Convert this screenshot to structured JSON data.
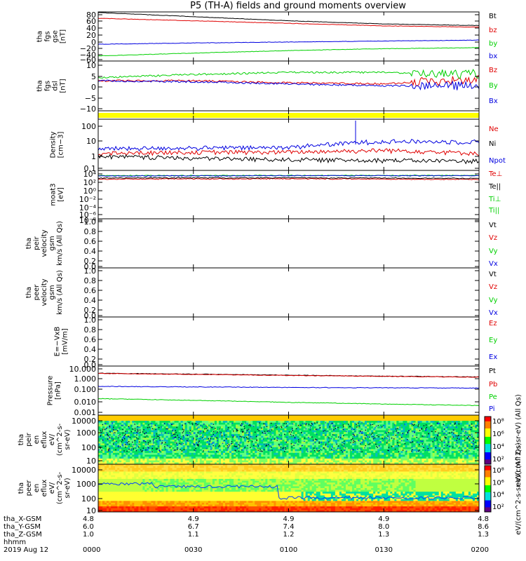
{
  "title": "P5 (TH-A) fields and ground moments overview",
  "colors": {
    "black": "#000000",
    "red": "#e00000",
    "green": "#00d000",
    "blue": "#0000e0",
    "yellow": "#ffff00"
  },
  "panels": [
    {
      "id": "fgs-gse",
      "ylabel": [
        "tha",
        "fgs",
        "gse",
        "[nT]"
      ],
      "yticks": [
        "80",
        "60",
        "40",
        "20",
        "0",
        "−20",
        "−40",
        "−60"
      ],
      "legend": [
        {
          "text": "Bt",
          "color": "black"
        },
        {
          "text": "bz",
          "color": "red"
        },
        {
          "text": "by",
          "color": "green"
        },
        {
          "text": "bx",
          "color": "blue"
        }
      ]
    },
    {
      "id": "fgs-dsl",
      "ylabel": [
        "tha",
        "fgs",
        "dsl",
        "[nT]"
      ],
      "yticks": [
        "10",
        "5",
        "0",
        "−5",
        "−10"
      ],
      "legend": [
        {
          "text": "Bz",
          "color": "red"
        },
        {
          "text": "By",
          "color": "green"
        },
        {
          "text": "Bx",
          "color": "blue"
        }
      ]
    },
    {
      "id": "mode-bar",
      "ylabel": [],
      "yticks": [],
      "legend": []
    },
    {
      "id": "density",
      "ylabel": [
        "Density",
        "[cm−3]"
      ],
      "yticks": [
        "100",
        "10",
        "1",
        "0.1"
      ],
      "legend": [
        {
          "text": "Ne",
          "color": "red"
        },
        {
          "text": "Ni",
          "color": "black"
        },
        {
          "text": "Npot",
          "color": "blue"
        }
      ]
    },
    {
      "id": "temperature",
      "ylabel": [
        "moat3",
        "[eV]"
      ],
      "yticks": [
        "10⁴",
        "10²",
        "10⁰",
        "10⁻²",
        "10⁻⁴",
        "10⁻⁶",
        "10⁻⁸"
      ],
      "legend": [
        {
          "text": "Te⊥",
          "color": "red"
        },
        {
          "text": "Te||",
          "color": "black"
        },
        {
          "text": "Ti⊥",
          "color": "green"
        },
        {
          "text": "Ti||",
          "color": "green"
        }
      ]
    },
    {
      "id": "peir-velocity",
      "ylabel": [
        "tha",
        "peir",
        "velocity",
        "gsm",
        "km/s (All Qs)"
      ],
      "yticks": [
        "1.0",
        "0.8",
        "0.6",
        "0.4",
        "0.2",
        "0.0"
      ],
      "legend": [
        {
          "text": "Vt",
          "color": "black"
        },
        {
          "text": "Vz",
          "color": "red"
        },
        {
          "text": "Vy",
          "color": "green"
        },
        {
          "text": "Vx",
          "color": "blue"
        }
      ]
    },
    {
      "id": "peer-velocity",
      "ylabel": [
        "tha",
        "peer",
        "velocity",
        "gsm",
        "km/s (All Qs)"
      ],
      "yticks": [
        "1.0",
        "0.8",
        "0.6",
        "0.4",
        "0.2",
        "0.0"
      ],
      "legend": [
        {
          "text": "Vt",
          "color": "black"
        },
        {
          "text": "Vz",
          "color": "red"
        },
        {
          "text": "Vy",
          "color": "green"
        },
        {
          "text": "Vx",
          "color": "blue"
        }
      ]
    },
    {
      "id": "efield",
      "ylabel": [
        "E=−VxB",
        "[mV/m]"
      ],
      "yticks": [
        "1.0",
        "0.8",
        "0.6",
        "0.4",
        "0.2",
        "0.0"
      ],
      "legend": [
        {
          "text": "Ez",
          "color": "red"
        },
        {
          "text": "Ey",
          "color": "green"
        },
        {
          "text": "Ex",
          "color": "blue"
        }
      ]
    },
    {
      "id": "pressure",
      "ylabel": [
        "Pressure",
        "[nPa]"
      ],
      "yticks": [
        "10.000",
        "1.000",
        "0.100",
        "0.010",
        "0.001"
      ],
      "legend": [
        {
          "text": "Pt",
          "color": "black"
        },
        {
          "text": "Pb",
          "color": "red"
        },
        {
          "text": "Pe",
          "color": "green"
        },
        {
          "text": "Pi",
          "color": "blue"
        }
      ]
    },
    {
      "id": "peir-eflux",
      "ylabel": [
        "tha",
        "peir",
        "en",
        "eflux",
        "eV/",
        "(cm^2-s-",
        "sr-eV)"
      ],
      "yticks": [
        "10000",
        "1000",
        "100",
        "10"
      ],
      "legend": []
    },
    {
      "id": "peer-eflux",
      "ylabel": [
        "tha",
        "peer",
        "en",
        "eflux",
        "eV/",
        "(cm^2-s-",
        "sr-eV)"
      ],
      "yticks": [
        "10000",
        "1000",
        "100",
        "10"
      ],
      "legend": []
    }
  ],
  "colorbars": [
    {
      "ticks": [
        "10⁸",
        "10⁶",
        "10⁴",
        "10²"
      ],
      "label": "eV/(cm^2-s-sr-eV) (All Qs)"
    },
    {
      "ticks": [
        "10⁸",
        "10⁶",
        "10⁴",
        "10²"
      ],
      "label": "eV/(cm^2-s-sr-eV) (All Qs)"
    }
  ],
  "x_axis": {
    "row_labels": [
      "tha_X-GSM",
      "tha_Y-GSM",
      "tha_Z-GSM",
      "hhmm",
      "2019 Aug 12"
    ],
    "columns": [
      {
        "x": "4.8",
        "y": "6.0",
        "z": "1.0",
        "t": "0000"
      },
      {
        "x": "4.9",
        "y": "6.7",
        "z": "1.1",
        "t": "0030"
      },
      {
        "x": "4.9",
        "y": "7.4",
        "z": "1.2",
        "t": "0100"
      },
      {
        "x": "4.9",
        "y": "8.0",
        "z": "1.3",
        "t": "0130"
      },
      {
        "x": "4.8",
        "y": "8.6",
        "z": "1.3",
        "t": "0200"
      }
    ]
  },
  "chart_data": [
    {
      "type": "line",
      "title": "P5 (TH-A) fields and ground moments overview",
      "xlabel": "hhmm",
      "x": [
        "0000",
        "0030",
        "0100",
        "0130",
        "0200"
      ],
      "ylabel": "tha fgs gse [nT]",
      "ylim": [
        -65,
        90
      ],
      "series": [
        {
          "name": "Bt",
          "values": [
            88,
            75,
            62,
            52,
            47
          ]
        },
        {
          "name": "bz",
          "values": [
            70,
            62,
            54,
            46,
            42
          ]
        },
        {
          "name": "by",
          "values": [
            -49,
            -40,
            -32,
            -26,
            -23
          ]
        },
        {
          "name": "bx",
          "values": [
            -12,
            -8,
            -5,
            -2,
            1
          ]
        }
      ]
    },
    {
      "type": "line",
      "xlabel": "hhmm",
      "x": [
        "0000",
        "0030",
        "0100",
        "0130",
        "0200"
      ],
      "ylabel": "tha fgs dsl [nT]",
      "ylim": [
        -14,
        10
      ],
      "series": [
        {
          "name": "Bz",
          "values": [
            0.5,
            0.5,
            -0.5,
            -1,
            1
          ]
        },
        {
          "name": "By",
          "values": [
            2,
            3.5,
            4.5,
            4.5,
            3.5
          ]
        },
        {
          "name": "Bx",
          "values": [
            0.5,
            0,
            -1,
            -2,
            -2
          ]
        }
      ]
    },
    {
      "type": "line",
      "xlabel": "hhmm",
      "x": [
        "0000",
        "0030",
        "0100",
        "0130",
        "0200"
      ],
      "ylabel": "Density [cm-3]",
      "ylim": [
        0.1,
        200
      ],
      "series": [
        {
          "name": "Ne",
          "values": [
            1.2,
            1.5,
            1.5,
            2.0,
            1.3
          ]
        },
        {
          "name": "Ni",
          "values": [
            0.8,
            0.6,
            0.5,
            0.45,
            0.4
          ]
        },
        {
          "name": "Npot",
          "values": [
            2.5,
            2.8,
            3.0,
            7.5,
            7.0
          ]
        }
      ]
    },
    {
      "type": "line",
      "xlabel": "hhmm",
      "x": [
        "0000",
        "0030",
        "0100",
        "0130",
        "0200"
      ],
      "ylabel": "moat3 [eV]",
      "ylim": [
        1e-09,
        100000.0
      ],
      "series": [
        {
          "name": "Te⊥",
          "values": [
            300,
            350,
            400,
            300,
            250
          ]
        },
        {
          "name": "Te||",
          "values": [
            600,
            700,
            700,
            600,
            500
          ]
        },
        {
          "name": "Ti⊥",
          "values": [
            3000,
            3200,
            3500,
            3500,
            3500
          ]
        },
        {
          "name": "Ti||",
          "values": [
            2500,
            2700,
            3000,
            3000,
            3000
          ]
        }
      ]
    },
    {
      "type": "line",
      "xlabel": "hhmm",
      "x": [
        "0000",
        "0030",
        "0100",
        "0130",
        "0200"
      ],
      "ylabel": "Pressure [nPa]",
      "ylim": [
        0.001,
        10
      ],
      "series": [
        {
          "name": "Pt",
          "values": [
            2.6,
            2.2,
            1.8,
            1.5,
            1.3
          ]
        },
        {
          "name": "Pb",
          "values": [
            2.5,
            2.1,
            1.7,
            1.45,
            1.25
          ]
        },
        {
          "name": "Pe",
          "values": [
            0.022,
            0.016,
            0.011,
            0.008,
            0.006
          ]
        },
        {
          "name": "Pi",
          "values": [
            0.22,
            0.2,
            0.18,
            0.17,
            0.16
          ]
        }
      ]
    }
  ]
}
